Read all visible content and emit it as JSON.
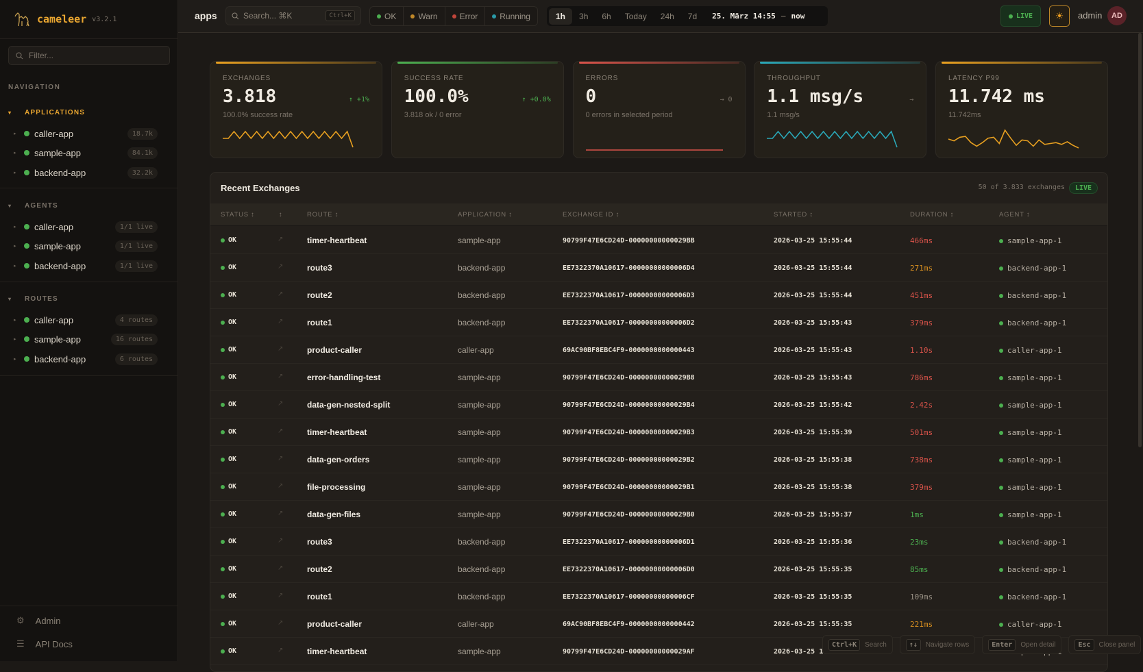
{
  "app": {
    "name": "cameleer",
    "version": "v3.2.1"
  },
  "sidebar": {
    "filter_placeholder": "Filter...",
    "navigation_label": "NAVIGATION",
    "groups": [
      {
        "title": "APPLICATIONS",
        "items": [
          {
            "label": "caller-app",
            "badge": "18.7k"
          },
          {
            "label": "sample-app",
            "badge": "84.1k"
          },
          {
            "label": "backend-app",
            "badge": "32.2k"
          }
        ]
      },
      {
        "title": "AGENTS",
        "items": [
          {
            "label": "caller-app",
            "badge": "1/1 live"
          },
          {
            "label": "sample-app",
            "badge": "1/1 live"
          },
          {
            "label": "backend-app",
            "badge": "1/1 live"
          }
        ]
      },
      {
        "title": "ROUTES",
        "items": [
          {
            "label": "caller-app",
            "badge": "4 routes"
          },
          {
            "label": "sample-app",
            "badge": "16 routes"
          },
          {
            "label": "backend-app",
            "badge": "6 routes"
          }
        ]
      }
    ],
    "footer": [
      {
        "label": "Admin",
        "icon": "gear-icon"
      },
      {
        "label": "API Docs",
        "icon": "menu-icon"
      }
    ]
  },
  "topbar": {
    "title": "apps",
    "search_placeholder": "Search... ⌘K",
    "search_shortcut": "Ctrl+K",
    "status_filters": [
      {
        "label": "OK",
        "color": "#4caf50"
      },
      {
        "label": "Warn",
        "color": "#c08828"
      },
      {
        "label": "Error",
        "color": "#c0453a"
      },
      {
        "label": "Running",
        "color": "#2a9aa8"
      }
    ],
    "time_options": [
      "1h",
      "3h",
      "6h",
      "Today",
      "24h",
      "7d"
    ],
    "time_selected": "1h",
    "range_from": "25. März 14:55",
    "range_sep": "–",
    "range_to": "now",
    "live_label": "LIVE",
    "user": "admin",
    "avatar_initials": "AD"
  },
  "kpis": [
    {
      "label": "EXCHANGES",
      "value": "3.818",
      "trend": "↑ +1%",
      "trend_color": "#4caf50",
      "sub": "100.0% success rate",
      "accent": "#e8a020"
    },
    {
      "label": "SUCCESS RATE",
      "value": "100.0%",
      "trend": "↑ +0.0%",
      "trend_color": "#4caf50",
      "sub": "3.818 ok / 0 error",
      "accent": "#4caf50"
    },
    {
      "label": "ERRORS",
      "value": "0",
      "trend": "→ 0",
      "trend_color": "#7a7268",
      "sub": "0 errors in selected period",
      "accent": "#d9534a"
    },
    {
      "label": "THROUGHPUT",
      "value": "1.1 msg/s",
      "trend": "→",
      "trend_color": "#7a7268",
      "sub": "1.1 msg/s",
      "accent": "#2aa8b8"
    },
    {
      "label": "LATENCY P99",
      "value": "11.742 ms",
      "trend": "",
      "trend_color": "#7a7268",
      "sub": "11.742ms",
      "accent": "#e8a020"
    }
  ],
  "exchanges": {
    "title": "Recent Exchanges",
    "count": "50 of 3.833 exchanges",
    "live": "LIVE",
    "columns": [
      "STATUS ↕",
      "↕",
      "ROUTE ↕",
      "APPLICATION ↕",
      "EXCHANGE ID ↕",
      "STARTED ↕",
      "DURATION ↕",
      "AGENT ↕"
    ],
    "rows": [
      {
        "status": "OK",
        "route": "timer-heartbeat",
        "app": "sample-app",
        "id": "90799F47E6CD24D-00000000000029BB",
        "started": "2026-03-25 15:55:44",
        "duration": "466ms",
        "dur_color": "#d9534a",
        "agent": "sample-app-1"
      },
      {
        "status": "OK",
        "route": "route3",
        "app": "backend-app",
        "id": "EE7322370A10617-00000000000006D4",
        "started": "2026-03-25 15:55:44",
        "duration": "271ms",
        "dur_color": "#d99020",
        "agent": "backend-app-1"
      },
      {
        "status": "OK",
        "route": "route2",
        "app": "backend-app",
        "id": "EE7322370A10617-00000000000006D3",
        "started": "2026-03-25 15:55:44",
        "duration": "451ms",
        "dur_color": "#d9534a",
        "agent": "backend-app-1"
      },
      {
        "status": "OK",
        "route": "route1",
        "app": "backend-app",
        "id": "EE7322370A10617-00000000000006D2",
        "started": "2026-03-25 15:55:43",
        "duration": "379ms",
        "dur_color": "#d9534a",
        "agent": "backend-app-1"
      },
      {
        "status": "OK",
        "route": "product-caller",
        "app": "caller-app",
        "id": "69AC90BF8EBC4F9-0000000000000443",
        "started": "2026-03-25 15:55:43",
        "duration": "1.10s",
        "dur_color": "#d9534a",
        "agent": "caller-app-1"
      },
      {
        "status": "OK",
        "route": "error-handling-test",
        "app": "sample-app",
        "id": "90799F47E6CD24D-00000000000029B8",
        "started": "2026-03-25 15:55:43",
        "duration": "786ms",
        "dur_color": "#d9534a",
        "agent": "sample-app-1"
      },
      {
        "status": "OK",
        "route": "data-gen-nested-split",
        "app": "sample-app",
        "id": "90799F47E6CD24D-00000000000029B4",
        "started": "2026-03-25 15:55:42",
        "duration": "2.42s",
        "dur_color": "#d9534a",
        "agent": "sample-app-1"
      },
      {
        "status": "OK",
        "route": "timer-heartbeat",
        "app": "sample-app",
        "id": "90799F47E6CD24D-00000000000029B3",
        "started": "2026-03-25 15:55:39",
        "duration": "501ms",
        "dur_color": "#d9534a",
        "agent": "sample-app-1"
      },
      {
        "status": "OK",
        "route": "data-gen-orders",
        "app": "sample-app",
        "id": "90799F47E6CD24D-00000000000029B2",
        "started": "2026-03-25 15:55:38",
        "duration": "738ms",
        "dur_color": "#d9534a",
        "agent": "sample-app-1"
      },
      {
        "status": "OK",
        "route": "file-processing",
        "app": "sample-app",
        "id": "90799F47E6CD24D-00000000000029B1",
        "started": "2026-03-25 15:55:38",
        "duration": "379ms",
        "dur_color": "#d9534a",
        "agent": "sample-app-1"
      },
      {
        "status": "OK",
        "route": "data-gen-files",
        "app": "sample-app",
        "id": "90799F47E6CD24D-00000000000029B0",
        "started": "2026-03-25 15:55:37",
        "duration": "1ms",
        "dur_color": "#4caf50",
        "agent": "sample-app-1"
      },
      {
        "status": "OK",
        "route": "route3",
        "app": "backend-app",
        "id": "EE7322370A10617-00000000000006D1",
        "started": "2026-03-25 15:55:36",
        "duration": "23ms",
        "dur_color": "#4caf50",
        "agent": "backend-app-1"
      },
      {
        "status": "OK",
        "route": "route2",
        "app": "backend-app",
        "id": "EE7322370A10617-00000000000006D0",
        "started": "2026-03-25 15:55:35",
        "duration": "85ms",
        "dur_color": "#4caf50",
        "agent": "backend-app-1"
      },
      {
        "status": "OK",
        "route": "route1",
        "app": "backend-app",
        "id": "EE7322370A10617-00000000000006CF",
        "started": "2026-03-25 15:55:35",
        "duration": "109ms",
        "dur_color": "#9a9286",
        "agent": "backend-app-1"
      },
      {
        "status": "OK",
        "route": "product-caller",
        "app": "caller-app",
        "id": "69AC90BF8EBC4F9-0000000000000442",
        "started": "2026-03-25 15:55:35",
        "duration": "221ms",
        "dur_color": "#d99020",
        "agent": "caller-app-1"
      },
      {
        "status": "OK",
        "route": "timer-heartbeat",
        "app": "sample-app",
        "id": "90799F47E6CD24D-00000000000029AF",
        "started": "2026-03-25 1",
        "duration": "",
        "dur_color": "#d9534a",
        "agent": "sample-app-1"
      }
    ]
  },
  "shortcuts": [
    {
      "key": "Ctrl+K",
      "label": "Search"
    },
    {
      "key": "↑↓",
      "label": "Navigate rows"
    },
    {
      "key": "Enter",
      "label": "Open detail"
    },
    {
      "key": "Esc",
      "label": "Close panel"
    }
  ]
}
